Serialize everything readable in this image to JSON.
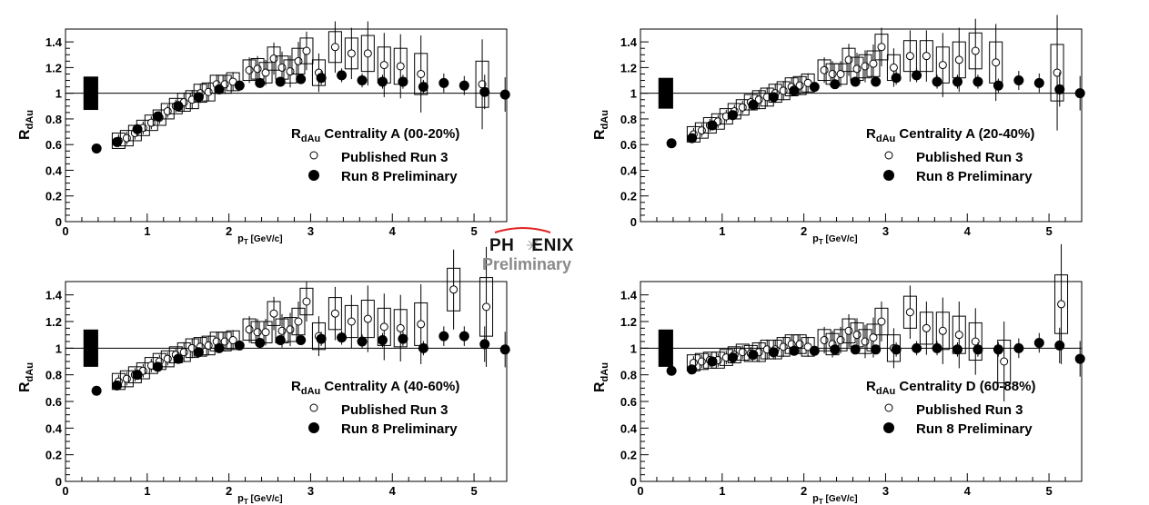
{
  "figure_logo": {
    "line1_left": "PH",
    "line1_right": "ENIX",
    "line2": "Preliminary"
  },
  "chart_data": [
    {
      "type": "scatter",
      "title": "Centrality A (00-20%)",
      "ylabel_main": "R",
      "ylabel_sub": "dAu",
      "legend_title_main": "R",
      "legend_title_sub": "dAu",
      "legend_title_rest": " Centrality A (00-20%)",
      "xlabel_main": "p",
      "xlabel_sub": "T",
      "xlabel_rest": " [GeV/c]",
      "xlim": [
        0,
        5.4
      ],
      "ylim": [
        0,
        1.5
      ],
      "xticks": [
        0,
        1,
        2,
        3,
        4,
        5
      ],
      "xtick_labels": [
        "0",
        "1",
        "2",
        "3",
        "4",
        "5"
      ],
      "yticks": [
        0,
        0.2,
        0.4,
        0.6,
        0.8,
        1,
        1.2,
        1.4
      ],
      "ytick_labels": [
        "0",
        "0.2",
        "0.4",
        "0.6",
        "0.8",
        "1",
        "1.2",
        "1.4"
      ],
      "reference_line": 1,
      "norm_band": {
        "x": [
          0.22,
          0.4
        ],
        "y": [
          0.87,
          1.13
        ]
      },
      "series": [
        {
          "name": "Published Run 3",
          "marker": "open-circle",
          "x": [
            0.65,
            0.75,
            0.85,
            0.95,
            1.05,
            1.15,
            1.25,
            1.35,
            1.45,
            1.55,
            1.65,
            1.75,
            1.85,
            1.95,
            2.05,
            2.25,
            2.35,
            2.45,
            2.55,
            2.65,
            2.75,
            2.85,
            2.95,
            3.1,
            3.3,
            3.5,
            3.7,
            3.9,
            4.1,
            4.35,
            5.1
          ],
          "y": [
            0.63,
            0.65,
            0.69,
            0.73,
            0.77,
            0.81,
            0.86,
            0.9,
            0.93,
            0.95,
            1.0,
            1.01,
            1.07,
            1.07,
            1.09,
            1.18,
            1.19,
            1.16,
            1.27,
            1.2,
            1.17,
            1.25,
            1.33,
            1.16,
            1.36,
            1.31,
            1.31,
            1.22,
            1.21,
            1.15,
            1.07
          ],
          "err": [
            0.02,
            0.02,
            0.02,
            0.02,
            0.02,
            0.02,
            0.02,
            0.02,
            0.03,
            0.03,
            0.03,
            0.03,
            0.03,
            0.03,
            0.03,
            0.04,
            0.04,
            0.04,
            0.05,
            0.05,
            0.05,
            0.06,
            0.06,
            0.06,
            0.08,
            0.08,
            0.1,
            0.1,
            0.1,
            0.12,
            0.14
          ]
        },
        {
          "name": "Run 8 Preliminary",
          "marker": "filled-circle",
          "x": [
            0.38,
            0.63,
            0.88,
            1.13,
            1.38,
            1.63,
            1.88,
            2.13,
            2.38,
            2.63,
            2.88,
            3.13,
            3.38,
            3.63,
            3.88,
            4.13,
            4.38,
            4.63,
            4.88,
            5.13,
            5.38
          ],
          "y": [
            0.57,
            0.62,
            0.72,
            0.82,
            0.9,
            0.97,
            1.03,
            1.06,
            1.08,
            1.09,
            1.11,
            1.12,
            1.14,
            1.1,
            1.09,
            1.09,
            1.05,
            1.08,
            1.06,
            1.01,
            0.99
          ],
          "err": [
            0.01,
            0.01,
            0.01,
            0.01,
            0.01,
            0.01,
            0.01,
            0.01,
            0.01,
            0.01,
            0.01,
            0.02,
            0.02,
            0.02,
            0.02,
            0.02,
            0.02,
            0.03,
            0.03,
            0.06,
            0.06
          ]
        }
      ],
      "legend_entries": [
        "Published Run 3",
        "Run 8 Preliminary"
      ]
    },
    {
      "type": "scatter",
      "title": "Centrality A (20-40%)",
      "ylabel_main": "R",
      "ylabel_sub": "dAu",
      "legend_title_main": "R",
      "legend_title_sub": "dAu",
      "legend_title_rest": " Centrality A (20-40%)",
      "xlabel_main": "p",
      "xlabel_sub": "T",
      "xlabel_rest": " [GeV/c]",
      "xlim": [
        0,
        5.4
      ],
      "ylim": [
        0,
        1.5
      ],
      "xticks": [
        1,
        2,
        3,
        4,
        5
      ],
      "xtick_labels": [
        "1",
        "2",
        "3",
        "4",
        "5"
      ],
      "yticks": [
        0,
        0.2,
        0.4,
        0.6,
        0.8,
        1,
        1.2,
        1.4
      ],
      "ytick_labels": [
        "0",
        "0.2",
        "0.4",
        "0.6",
        "0.8",
        "1",
        "1.2",
        "1.4"
      ],
      "reference_line": 1,
      "norm_band": {
        "x": [
          0.22,
          0.4
        ],
        "y": [
          0.88,
          1.12
        ]
      },
      "series": [
        {
          "name": "Published Run 3",
          "marker": "open-circle",
          "x": [
            0.65,
            0.75,
            0.85,
            0.95,
            1.05,
            1.15,
            1.25,
            1.35,
            1.45,
            1.55,
            1.65,
            1.75,
            1.85,
            1.95,
            2.05,
            2.25,
            2.35,
            2.45,
            2.55,
            2.65,
            2.75,
            2.85,
            2.95,
            3.1,
            3.3,
            3.5,
            3.7,
            3.9,
            4.1,
            4.35,
            5.1
          ],
          "y": [
            0.68,
            0.71,
            0.75,
            0.78,
            0.82,
            0.86,
            0.89,
            0.93,
            0.95,
            0.97,
            1.0,
            1.02,
            1.05,
            1.06,
            1.08,
            1.18,
            1.15,
            1.15,
            1.26,
            1.19,
            1.21,
            1.23,
            1.36,
            1.2,
            1.29,
            1.29,
            1.22,
            1.26,
            1.33,
            1.24,
            1.16
          ],
          "err": [
            0.02,
            0.02,
            0.02,
            0.02,
            0.02,
            0.02,
            0.02,
            0.02,
            0.03,
            0.03,
            0.03,
            0.03,
            0.03,
            0.03,
            0.03,
            0.04,
            0.04,
            0.04,
            0.05,
            0.05,
            0.05,
            0.06,
            0.06,
            0.06,
            0.08,
            0.08,
            0.1,
            0.1,
            0.1,
            0.12,
            0.18
          ]
        },
        {
          "name": "Run 8 Preliminary",
          "marker": "filled-circle",
          "x": [
            0.38,
            0.63,
            0.88,
            1.13,
            1.38,
            1.63,
            1.88,
            2.13,
            2.38,
            2.63,
            2.88,
            3.13,
            3.38,
            3.63,
            3.88,
            4.13,
            4.38,
            4.63,
            4.88,
            5.13,
            5.38
          ],
          "y": [
            0.61,
            0.65,
            0.75,
            0.83,
            0.91,
            0.97,
            1.02,
            1.05,
            1.07,
            1.09,
            1.09,
            1.12,
            1.14,
            1.09,
            1.09,
            1.09,
            1.06,
            1.1,
            1.08,
            1.03,
            1.0
          ],
          "err": [
            0.01,
            0.01,
            0.01,
            0.01,
            0.01,
            0.01,
            0.01,
            0.01,
            0.01,
            0.01,
            0.01,
            0.02,
            0.02,
            0.02,
            0.02,
            0.02,
            0.02,
            0.03,
            0.03,
            0.06,
            0.06
          ]
        }
      ],
      "legend_entries": [
        "Published Run 3",
        "Run 8 Preliminary"
      ]
    },
    {
      "type": "scatter",
      "title": "Centrality A (40-60%)",
      "ylabel_main": "R",
      "ylabel_sub": "dAu",
      "legend_title_main": "R",
      "legend_title_sub": "dAu",
      "legend_title_rest": " Centrality A (40-60%)",
      "xlabel_main": "p",
      "xlabel_sub": "T",
      "xlabel_rest": " [GeV/c]",
      "xlim": [
        0,
        5.4
      ],
      "ylim": [
        0,
        1.5
      ],
      "xticks": [
        0,
        1,
        2,
        3,
        4,
        5
      ],
      "xtick_labels": [
        "0",
        "1",
        "2",
        "3",
        "4",
        "5"
      ],
      "yticks": [
        0,
        0.2,
        0.4,
        0.6,
        0.8,
        1,
        1.2,
        1.4
      ],
      "ytick_labels": [
        "0",
        "0.2",
        "0.4",
        "0.6",
        "0.8",
        "1",
        "1.2",
        "1.4"
      ],
      "reference_line": 1,
      "norm_band": {
        "x": [
          0.22,
          0.4
        ],
        "y": [
          0.86,
          1.14
        ]
      },
      "series": [
        {
          "name": "Published Run 3",
          "marker": "open-circle",
          "x": [
            0.65,
            0.75,
            0.85,
            0.95,
            1.05,
            1.15,
            1.25,
            1.35,
            1.45,
            1.55,
            1.65,
            1.75,
            1.85,
            1.95,
            2.05,
            2.25,
            2.35,
            2.45,
            2.55,
            2.65,
            2.75,
            2.85,
            2.95,
            3.1,
            3.3,
            3.5,
            3.7,
            3.9,
            4.1,
            4.35,
            4.75,
            5.15
          ],
          "y": [
            0.75,
            0.77,
            0.8,
            0.83,
            0.87,
            0.9,
            0.92,
            0.95,
            0.97,
            1.0,
            1.01,
            1.02,
            1.05,
            1.05,
            1.06,
            1.14,
            1.12,
            1.12,
            1.26,
            1.13,
            1.14,
            1.2,
            1.35,
            1.09,
            1.26,
            1.2,
            1.22,
            1.16,
            1.15,
            1.18,
            1.44,
            1.31
          ],
          "err": [
            0.02,
            0.02,
            0.02,
            0.02,
            0.02,
            0.02,
            0.02,
            0.02,
            0.03,
            0.03,
            0.03,
            0.03,
            0.03,
            0.03,
            0.03,
            0.04,
            0.04,
            0.04,
            0.05,
            0.05,
            0.05,
            0.06,
            0.06,
            0.06,
            0.08,
            0.08,
            0.1,
            0.1,
            0.1,
            0.12,
            0.12,
            0.18
          ]
        },
        {
          "name": "Run 8 Preliminary",
          "marker": "filled-circle",
          "x": [
            0.38,
            0.63,
            0.88,
            1.13,
            1.38,
            1.63,
            1.88,
            2.13,
            2.38,
            2.63,
            2.88,
            3.13,
            3.38,
            3.63,
            3.88,
            4.13,
            4.38,
            4.63,
            4.88,
            5.13,
            5.38
          ],
          "y": [
            0.68,
            0.72,
            0.8,
            0.86,
            0.92,
            0.97,
            1.0,
            1.02,
            1.04,
            1.06,
            1.06,
            1.07,
            1.08,
            1.05,
            1.06,
            1.07,
            1.0,
            1.09,
            1.09,
            1.03,
            0.99
          ],
          "err": [
            0.01,
            0.01,
            0.01,
            0.01,
            0.01,
            0.01,
            0.01,
            0.01,
            0.01,
            0.01,
            0.01,
            0.02,
            0.02,
            0.02,
            0.02,
            0.02,
            0.02,
            0.03,
            0.03,
            0.06,
            0.06
          ]
        }
      ],
      "legend_entries": [
        "Published Run 3",
        "Run 8 Preliminary"
      ]
    },
    {
      "type": "scatter",
      "title": "Centrality D (60-88%)",
      "ylabel_main": "R",
      "ylabel_sub": "dAu",
      "legend_title_main": "R",
      "legend_title_sub": "dAu",
      "legend_title_rest": " Centrality D (60-88%)",
      "xlabel_main": "p",
      "xlabel_sub": "T",
      "xlabel_rest": " [GeV/c]",
      "xlim": [
        0,
        5.4
      ],
      "ylim": [
        0,
        1.5
      ],
      "xticks": [
        0,
        1,
        2,
        3,
        4,
        5
      ],
      "xtick_labels": [
        "0",
        "1",
        "2",
        "3",
        "4",
        "5"
      ],
      "yticks": [
        0,
        0.2,
        0.4,
        0.6,
        0.8,
        1,
        1.2,
        1.4
      ],
      "ytick_labels": [
        "0",
        "0.2",
        "0.4",
        "0.6",
        "0.8",
        "1",
        "1.2",
        "1.4"
      ],
      "reference_line": 1,
      "norm_band": {
        "x": [
          0.22,
          0.4
        ],
        "y": [
          0.86,
          1.14
        ]
      },
      "series": [
        {
          "name": "Published Run 3",
          "marker": "open-circle",
          "x": [
            0.65,
            0.75,
            0.85,
            0.95,
            1.05,
            1.15,
            1.25,
            1.35,
            1.45,
            1.55,
            1.65,
            1.75,
            1.85,
            1.95,
            2.05,
            2.25,
            2.35,
            2.45,
            2.55,
            2.65,
            2.75,
            2.85,
            2.95,
            3.1,
            3.3,
            3.5,
            3.7,
            3.9,
            4.1,
            4.45,
            5.15
          ],
          "y": [
            0.89,
            0.9,
            0.91,
            0.91,
            0.93,
            0.95,
            0.97,
            0.96,
            0.97,
            0.99,
            0.99,
            1.01,
            1.03,
            1.03,
            1.01,
            1.06,
            1.03,
            1.06,
            1.13,
            1.1,
            1.05,
            1.08,
            1.2,
            1.0,
            1.27,
            1.15,
            1.13,
            1.1,
            1.05,
            0.9,
            1.33
          ],
          "err": [
            0.02,
            0.02,
            0.02,
            0.02,
            0.02,
            0.02,
            0.02,
            0.02,
            0.03,
            0.03,
            0.03,
            0.03,
            0.03,
            0.03,
            0.03,
            0.04,
            0.04,
            0.04,
            0.05,
            0.05,
            0.05,
            0.06,
            0.06,
            0.06,
            0.08,
            0.08,
            0.1,
            0.1,
            0.1,
            0.12,
            0.18
          ]
        },
        {
          "name": "Run 8 Preliminary",
          "marker": "filled-circle",
          "x": [
            0.38,
            0.63,
            0.88,
            1.13,
            1.38,
            1.63,
            1.88,
            2.13,
            2.38,
            2.63,
            2.88,
            3.13,
            3.38,
            3.63,
            3.88,
            4.13,
            4.38,
            4.63,
            4.88,
            5.13,
            5.38
          ],
          "y": [
            0.83,
            0.84,
            0.9,
            0.93,
            0.95,
            0.97,
            0.98,
            0.98,
            0.99,
            0.99,
            0.99,
            0.99,
            1.0,
            1.0,
            0.99,
            0.99,
            0.99,
            1.0,
            1.04,
            1.02,
            0.92
          ],
          "err": [
            0.01,
            0.01,
            0.01,
            0.01,
            0.01,
            0.01,
            0.01,
            0.01,
            0.01,
            0.01,
            0.01,
            0.02,
            0.02,
            0.02,
            0.02,
            0.02,
            0.02,
            0.03,
            0.03,
            0.06,
            0.06
          ]
        }
      ],
      "legend_entries": [
        "Published Run 3",
        "Run 8 Preliminary"
      ]
    }
  ]
}
